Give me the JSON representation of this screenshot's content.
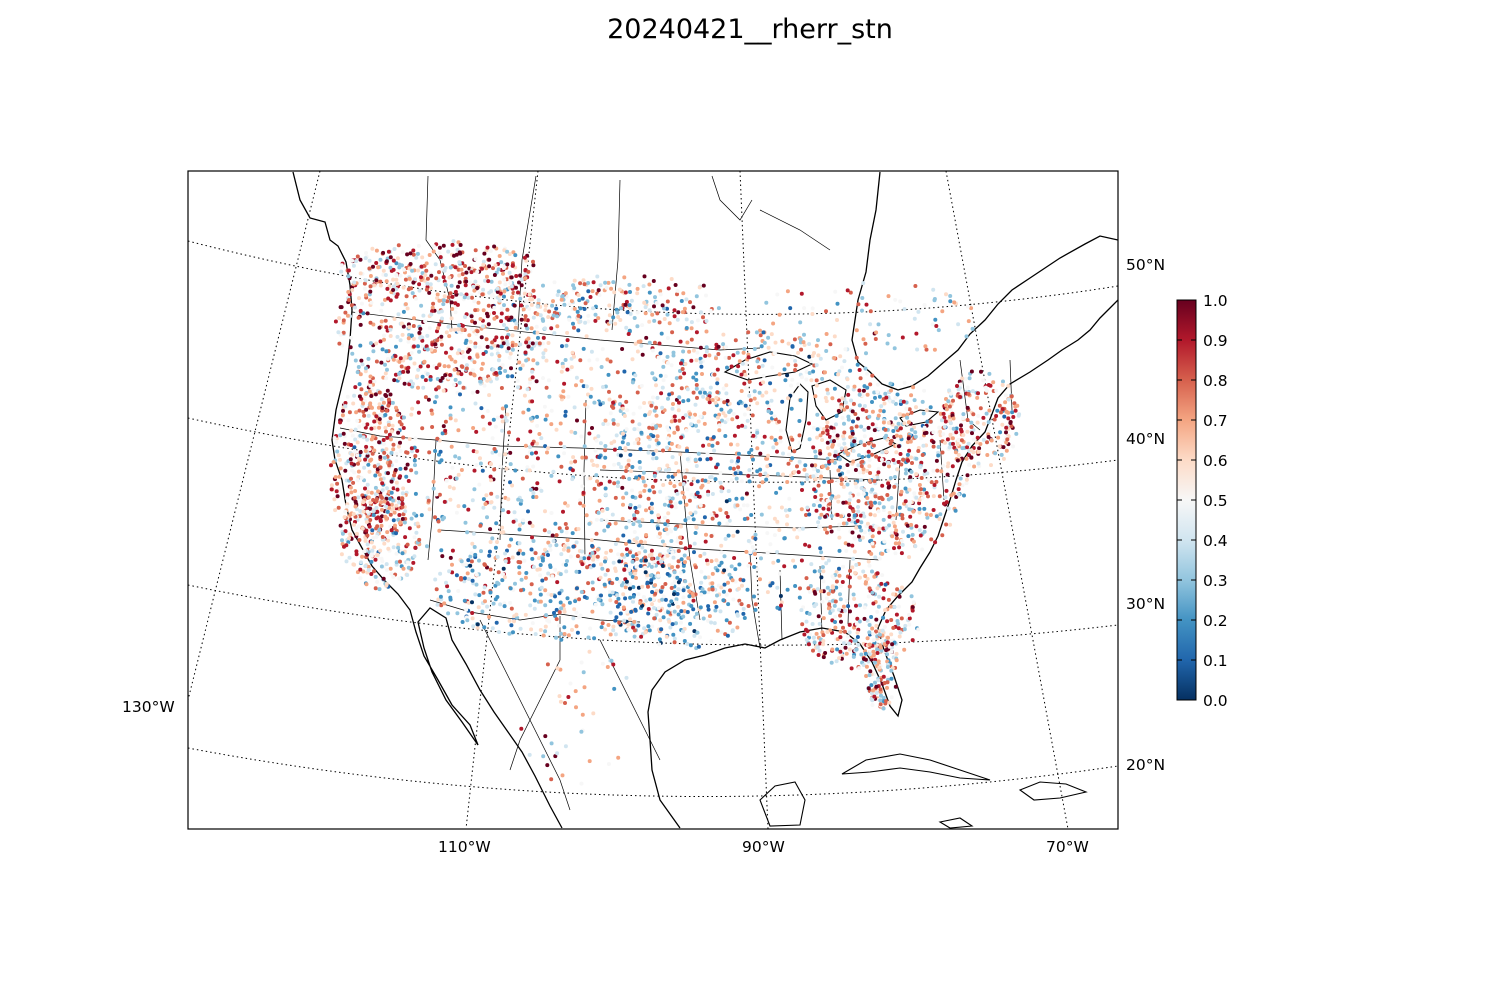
{
  "title": "20240421__rherr_stn",
  "map": {
    "projection": "lambert-conformal",
    "meridian_labels": [
      {
        "label": "130°W",
        "lon": -130
      },
      {
        "label": "110°W",
        "lon": -110
      },
      {
        "label": "90°W",
        "lon": -90
      },
      {
        "label": "70°W",
        "lon": -70
      }
    ],
    "parallel_labels": [
      {
        "label": "50°N",
        "lat": 50
      },
      {
        "label": "40°N",
        "lat": 40
      },
      {
        "label": "30°N",
        "lat": 30
      },
      {
        "label": "20°N",
        "lat": 20
      }
    ],
    "gridline_style": "dotted",
    "station_marker": "small-dot"
  },
  "colorbar": {
    "colormap": "RdBu_r",
    "range": [
      0.0,
      1.0
    ],
    "ticks": [
      "0.0",
      "0.1",
      "0.2",
      "0.3",
      "0.4",
      "0.5",
      "0.6",
      "0.7",
      "0.8",
      "0.9",
      "1.0"
    ],
    "colors": [
      "#053061",
      "#2166ac",
      "#4393c3",
      "#92c5de",
      "#d1e5f0",
      "#f7f7f7",
      "#fddbc7",
      "#f4a582",
      "#d6604d",
      "#b2182b",
      "#67001f"
    ]
  }
}
